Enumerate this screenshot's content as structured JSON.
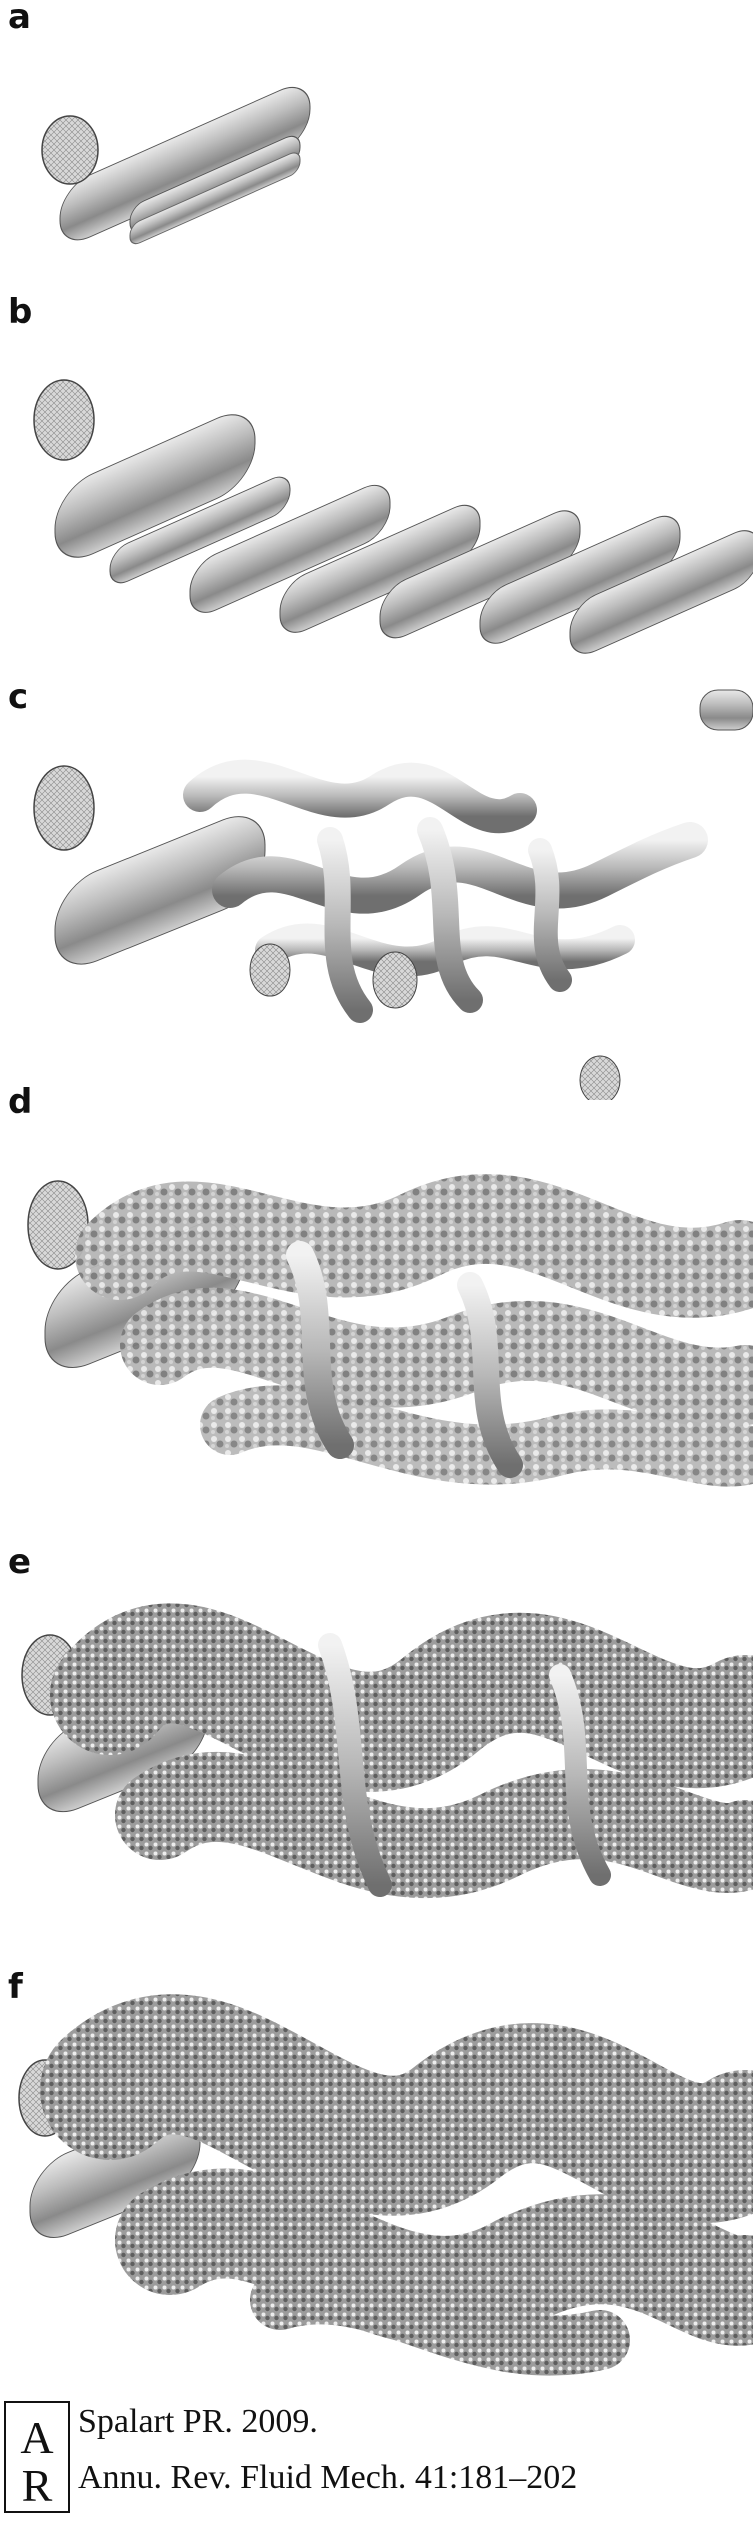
{
  "panels": [
    {
      "id": "a",
      "label": "a"
    },
    {
      "id": "b",
      "label": "b"
    },
    {
      "id": "c",
      "label": "c"
    },
    {
      "id": "d",
      "label": "d"
    },
    {
      "id": "e",
      "label": "e"
    },
    {
      "id": "f",
      "label": "f"
    }
  ],
  "citation": {
    "logo_text": "AR",
    "line1": "Spalart PR. 2009.",
    "line2": "Annu. Rev. Fluid Mech. 41:181–202"
  }
}
